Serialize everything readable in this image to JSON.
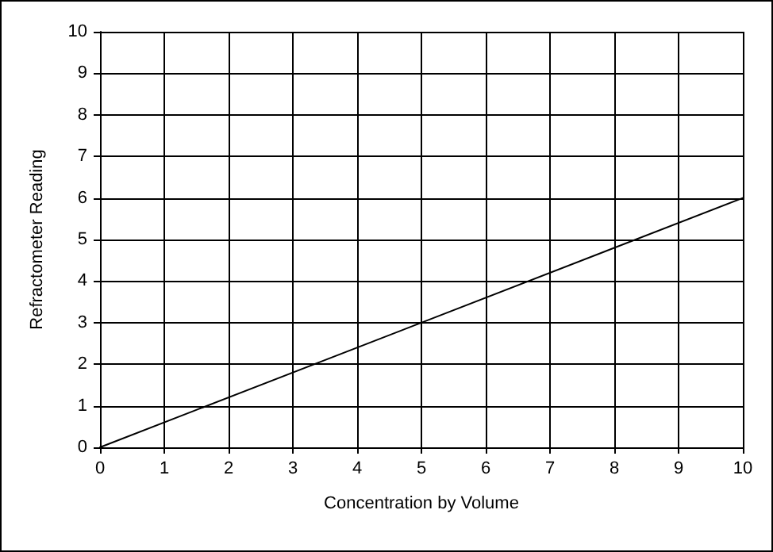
{
  "chart_data": {
    "type": "line",
    "xlabel": "Concentration by Volume",
    "ylabel": "Refractometer Reading",
    "x": [
      0,
      10
    ],
    "series": [
      {
        "color": "#000000",
        "values": [
          0,
          6
        ]
      }
    ],
    "xlim": [
      0,
      10
    ],
    "xticks": [
      0,
      1,
      2,
      3,
      4,
      5,
      6,
      7,
      8,
      9,
      10
    ],
    "ylim": [
      0,
      10
    ],
    "yticks": [
      0,
      1,
      2,
      3,
      4,
      5,
      6,
      7,
      8,
      9,
      10
    ],
    "grid": true,
    "marker": "none",
    "line_style": "solid"
  }
}
